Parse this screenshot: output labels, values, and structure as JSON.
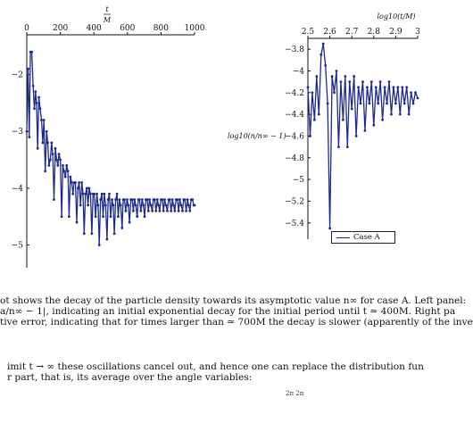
{
  "chart_data": [
    {
      "type": "line",
      "panel": "left",
      "xlabel_num": "t",
      "xlabel_den": "M",
      "ylabel": "",
      "xlim": [
        0,
        1000
      ],
      "ylim": [
        -5.4,
        -1.3
      ],
      "xticks": [
        "0",
        "200",
        "400",
        "600",
        "800",
        "1000"
      ],
      "yticks": [
        "-2",
        "-3",
        "-4",
        "-5"
      ],
      "x_axis_position": "top",
      "color": "#1c2a8c",
      "marker": "dot",
      "series": [
        {
          "x": [
            0,
            8,
            15,
            22,
            30,
            38,
            45,
            52,
            58,
            65,
            72,
            80,
            88,
            95,
            102,
            110,
            118,
            125,
            132,
            140,
            148,
            155,
            162,
            170,
            178,
            185,
            192,
            200,
            208,
            215,
            222,
            230,
            238,
            245,
            252,
            260,
            268,
            275,
            282,
            290,
            298,
            305,
            312,
            320,
            328,
            335,
            342,
            350,
            358,
            365,
            372,
            380,
            388,
            395,
            402,
            410,
            418,
            425,
            432,
            440,
            448,
            455,
            462,
            470,
            478,
            485,
            492,
            500,
            508,
            515,
            522,
            530,
            538,
            545,
            552,
            560,
            568,
            575,
            582,
            590,
            598,
            605,
            612,
            620,
            628,
            635,
            642,
            650,
            658,
            665,
            672,
            680,
            688,
            695,
            702,
            710,
            718,
            725,
            732,
            740,
            748,
            755,
            762,
            770,
            778,
            785,
            792,
            800,
            808,
            815,
            822,
            830,
            838,
            845,
            852,
            860,
            868,
            875,
            882,
            890,
            898,
            905,
            912,
            920,
            928,
            935,
            942,
            950,
            958,
            965,
            972,
            980,
            988,
            995,
            1000
          ],
          "y": [
            -3.0,
            -1.9,
            -3.1,
            -1.6,
            -1.6,
            -2.2,
            -2.6,
            -2.3,
            -2.5,
            -3.3,
            -2.4,
            -2.6,
            -2.8,
            -3.2,
            -2.8,
            -3.7,
            -3.0,
            -3.2,
            -3.6,
            -3.5,
            -3.2,
            -3.4,
            -4.2,
            -3.3,
            -3.5,
            -3.6,
            -3.4,
            -3.5,
            -4.5,
            -3.6,
            -3.7,
            -3.8,
            -3.6,
            -3.7,
            -4.5,
            -3.8,
            -3.9,
            -4.1,
            -3.9,
            -3.9,
            -4.6,
            -4.0,
            -3.9,
            -4.3,
            -3.9,
            -4.1,
            -4.8,
            -4.1,
            -4.0,
            -4.3,
            -4.0,
            -4.1,
            -4.8,
            -4.1,
            -4.1,
            -4.5,
            -4.1,
            -4.3,
            -5.0,
            -4.2,
            -4.1,
            -4.5,
            -4.1,
            -4.3,
            -4.9,
            -4.2,
            -4.1,
            -4.5,
            -4.2,
            -4.3,
            -4.8,
            -4.2,
            -4.1,
            -4.5,
            -4.2,
            -4.3,
            -4.7,
            -4.2,
            -4.2,
            -4.4,
            -4.2,
            -4.3,
            -4.6,
            -4.2,
            -4.2,
            -4.4,
            -4.2,
            -4.3,
            -4.5,
            -4.2,
            -4.2,
            -4.4,
            -4.2,
            -4.3,
            -4.5,
            -4.2,
            -4.2,
            -4.4,
            -4.2,
            -4.3,
            -4.4,
            -4.2,
            -4.2,
            -4.4,
            -4.2,
            -4.3,
            -4.4,
            -4.2,
            -4.2,
            -4.4,
            -4.2,
            -4.3,
            -4.4,
            -4.2,
            -4.2,
            -4.4,
            -4.2,
            -4.3,
            -4.4,
            -4.2,
            -4.2,
            -4.4,
            -4.2,
            -4.3,
            -4.4,
            -4.2,
            -4.2,
            -4.4,
            -4.2,
            -4.3,
            -4.4,
            -4.2,
            -4.2,
            -4.3,
            -4.3
          ]
        }
      ]
    },
    {
      "type": "line",
      "panel": "right",
      "xlabel": "log10(t/M)",
      "ylabel": "log10(n/n∞ − 1)",
      "xlim": [
        2.5,
        3.0
      ],
      "ylim": [
        -5.55,
        -3.7
      ],
      "xticks": [
        "2.5",
        "2.6",
        "2.7",
        "2.8",
        "2.9",
        "3"
      ],
      "yticks": [
        "-3.8",
        "-4",
        "-4.2",
        "-4.4",
        "-4.6",
        "-4.8",
        "-5",
        "-5.2",
        "-5.4"
      ],
      "x_axis_position": "top",
      "legend": [
        "Case A"
      ],
      "legend_position": "bottom-right",
      "color": "#1c2a8c",
      "marker": "dot",
      "series": [
        {
          "name": "Case A",
          "x": [
            2.5,
            2.51,
            2.52,
            2.53,
            2.54,
            2.55,
            2.56,
            2.57,
            2.58,
            2.59,
            2.6,
            2.61,
            2.62,
            2.63,
            2.64,
            2.65,
            2.66,
            2.67,
            2.68,
            2.69,
            2.7,
            2.71,
            2.72,
            2.73,
            2.74,
            2.75,
            2.76,
            2.77,
            2.78,
            2.79,
            2.8,
            2.81,
            2.82,
            2.83,
            2.84,
            2.85,
            2.86,
            2.87,
            2.88,
            2.89,
            2.9,
            2.91,
            2.92,
            2.93,
            2.94,
            2.95,
            2.96,
            2.97,
            2.98,
            2.99,
            3.0
          ],
          "y": [
            -4.15,
            -4.6,
            -4.2,
            -4.45,
            -4.05,
            -4.4,
            -3.85,
            -3.75,
            -3.95,
            -4.3,
            -5.45,
            -4.05,
            -4.2,
            -4.0,
            -4.7,
            -4.1,
            -4.45,
            -4.05,
            -4.7,
            -4.1,
            -4.35,
            -4.05,
            -4.6,
            -4.15,
            -4.3,
            -4.1,
            -4.55,
            -4.15,
            -4.3,
            -4.1,
            -4.5,
            -4.15,
            -4.3,
            -4.1,
            -4.45,
            -4.15,
            -4.3,
            -4.1,
            -4.4,
            -4.15,
            -4.3,
            -4.15,
            -4.4,
            -4.15,
            -4.3,
            -4.15,
            -4.4,
            -4.2,
            -4.3,
            -4.2,
            -4.25
          ]
        }
      ]
    }
  ],
  "caption": {
    "line1": "ot shows the decay of the particle density towards its asymptotic value n∞ for case A. Left panel:",
    "line2": "a/n∞ − 1|, indicating an initial exponential decay for the initial period until t ≃ 400M. Right pa",
    "line3": "tive error, indicating that for times larger than ≃ 700M the decay is slower (apparently of the inve",
    "line4": "imit t → ∞ these oscillations cancel out, and hence one can replace the distribution fun",
    "line5": "r part, that is, its average over the angle variables:",
    "formula": "2π 2π"
  }
}
